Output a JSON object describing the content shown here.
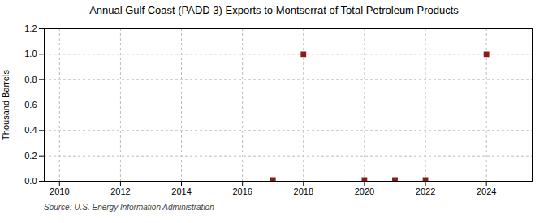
{
  "chart_data": {
    "type": "scatter",
    "title": "Annual Gulf Coast (PADD 3) Exports to Montserrat of Total Petroleum Products",
    "ylabel": "Thousand Barrels",
    "caption": "Source: U.S. Energy Information Administration",
    "x": [
      2017,
      2018,
      2020,
      2021,
      2022,
      2024
    ],
    "values": [
      0.01,
      1.0,
      0.01,
      0.01,
      0.01,
      1.0
    ],
    "color": "#8B1A1A",
    "marker": "square",
    "xlim": [
      2009.5,
      2025.5
    ],
    "xticks": [
      2010,
      2012,
      2014,
      2016,
      2018,
      2020,
      2022,
      2024
    ],
    "ylim": [
      0.0,
      1.2
    ],
    "yticks": [
      {
        "value": 0.0,
        "label": "0.0"
      },
      0.2,
      0.4,
      0.6,
      0.8,
      {
        "value": 1.0,
        "label": "1.0"
      },
      1.2
    ],
    "grid": true
  }
}
